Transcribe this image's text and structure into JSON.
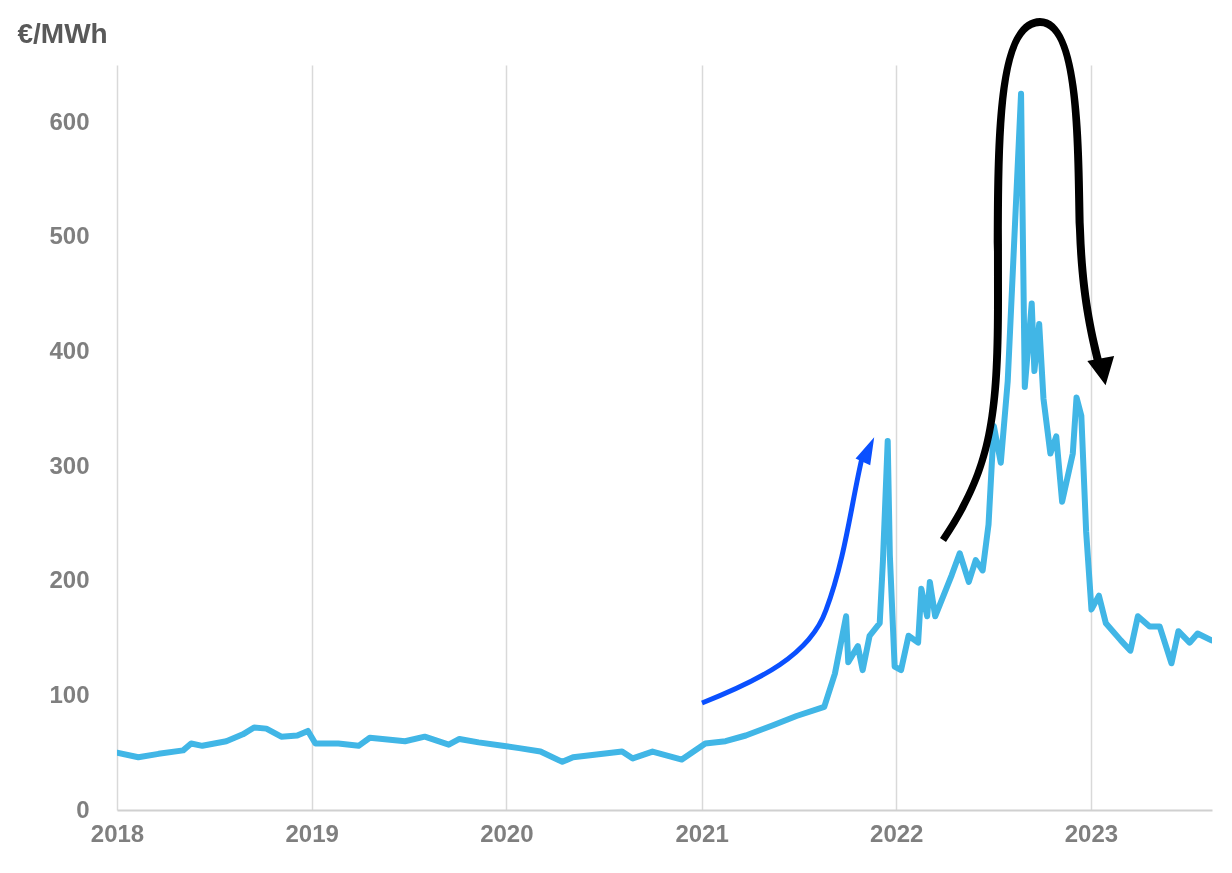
{
  "chart_data": {
    "type": "line",
    "ylabel": "€/MWh",
    "x": [
      "2018-01-01",
      "2018-02-10",
      "2018-03-20",
      "2018-05-05",
      "2018-05-20",
      "2018-06-10",
      "2018-07-25",
      "2018-08-25",
      "2018-09-15",
      "2018-10-08",
      "2018-11-05",
      "2018-12-05",
      "2018-12-25",
      "2019-01-08",
      "2019-02-20",
      "2019-03-30",
      "2019-04-20",
      "2019-06-25",
      "2019-08-01",
      "2019-09-15",
      "2019-10-05",
      "2019-11-10",
      "2019-12-25",
      "2020-01-25",
      "2020-03-05",
      "2020-04-15",
      "2020-05-05",
      "2020-08-05",
      "2020-08-25",
      "2020-10-01",
      "2020-11-25",
      "2021-01-08",
      "2021-02-15",
      "2021-03-25",
      "2021-05-15",
      "2021-06-28",
      "2021-08-19",
      "2021-09-08",
      "2021-09-29",
      "2021-10-03",
      "2021-10-21",
      "2021-10-30",
      "2021-11-12",
      "2021-12-01",
      "2021-12-07",
      "2021-12-16",
      "2021-12-20",
      "2021-12-29",
      "2022-01-10",
      "2022-01-24",
      "2022-02-11",
      "2022-02-17",
      "2022-02-28",
      "2022-03-05",
      "2022-03-15",
      "2022-04-15",
      "2022-04-30",
      "2022-05-17",
      "2022-05-30",
      "2022-06-12",
      "2022-06-23",
      "2022-07-03",
      "2022-07-16",
      "2022-07-29",
      "2022-08-23",
      "2022-08-30",
      "2022-09-12",
      "2022-09-17",
      "2022-09-26",
      "2022-10-04",
      "2022-10-17",
      "2022-10-28",
      "2022-11-08",
      "2022-11-28",
      "2022-12-05",
      "2022-12-14",
      "2022-12-23",
      "2023-01-02",
      "2023-01-16",
      "2023-01-29",
      "2023-02-26",
      "2023-03-16",
      "2023-03-30",
      "2023-04-21",
      "2023-05-10",
      "2023-06-01",
      "2023-06-14",
      "2023-07-05",
      "2023-07-20",
      "2023-08-15"
    ],
    "series": [
      {
        "color": "#41b6e6",
        "values": [
          50,
          46,
          49,
          52,
          58,
          56,
          60,
          66,
          72,
          71,
          64,
          65,
          69,
          58,
          58,
          56,
          63,
          60,
          64,
          57,
          62,
          59,
          56,
          54,
          51,
          42,
          46,
          51,
          45,
          51,
          44,
          58,
          60,
          65,
          74,
          82,
          90,
          119,
          169,
          129,
          143,
          122,
          152,
          163,
          217,
          322,
          222,
          125,
          122,
          152,
          146,
          193,
          169,
          199,
          169,
          205,
          224,
          199,
          218,
          209,
          249,
          335,
          303,
          374,
          625,
          369,
          442,
          383,
          424,
          359,
          311,
          326,
          269,
          311,
          360,
          344,
          243,
          175,
          187,
          163,
          148,
          139,
          169,
          160,
          160,
          128,
          156,
          146,
          154,
          148
        ]
      }
    ],
    "xlim": [
      "2018-01-01",
      "2023-08-16"
    ],
    "xticks": [
      "2018",
      "2019",
      "2020",
      "2021",
      "2022",
      "2023"
    ],
    "ylim": [
      0,
      650
    ],
    "yticks": [
      0,
      100,
      200,
      300,
      400,
      500,
      600
    ],
    "grid": "x"
  }
}
